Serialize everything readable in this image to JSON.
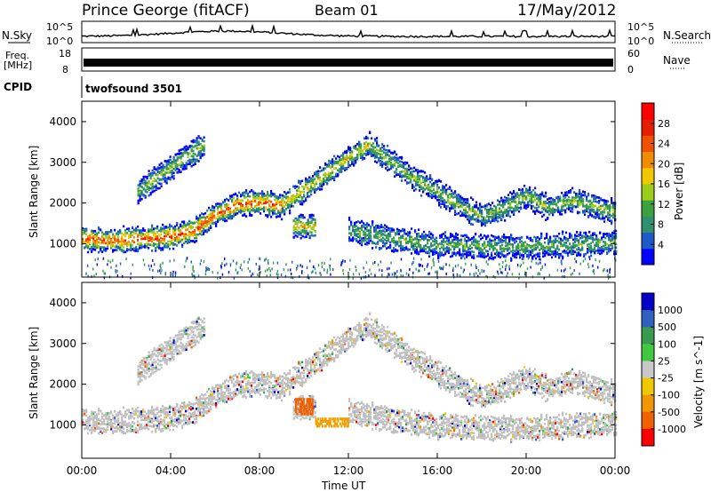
{
  "header": {
    "station": "Prince George (fitACF)",
    "beam": "Beam 01",
    "date": "17/May/2012"
  },
  "noise_panel": {
    "left_label": "N.Sky",
    "right_label": "N.Search",
    "right_ticks": [
      "10^5",
      "10^0"
    ],
    "left_ticks": [
      "10^5",
      "10^0"
    ]
  },
  "freq_panel": {
    "left_label_1": "Freq.",
    "left_label_2": "[MHz]",
    "left_ticks": [
      "18",
      "8"
    ],
    "right_label": "Nave",
    "right_ticks": [
      "60",
      "0"
    ]
  },
  "cpid": {
    "label": "CPID",
    "value": "twofsound 3501"
  },
  "colors": {
    "power": [
      "#0000ff",
      "#1e5ac8",
      "#2f8f6f",
      "#3aa040",
      "#9ccc1c",
      "#f0c800",
      "#f08c00",
      "#f05000",
      "#e61e00",
      "#ff0000"
    ],
    "velocity": [
      "#0000c8",
      "#3060c0",
      "#3a9a50",
      "#40c840",
      "#c8c8c8",
      "#f0c800",
      "#f09600",
      "#f06000",
      "#ff0000"
    ],
    "ground_scatter": "#c0c0c0"
  },
  "chart_data": [
    {
      "type": "heatmap",
      "name": "power",
      "ylabel": "Slant Range [km]",
      "ylim": [
        180,
        4500
      ],
      "y_ticks": [
        "4000",
        "3000",
        "2000",
        "1000"
      ],
      "colorbar_label": "Power [dB]",
      "colorbar_ticks": [
        "28",
        "24",
        "20",
        "16",
        "12",
        "8",
        "4"
      ],
      "colorbar_range": [
        0,
        32
      ],
      "xlim_hours": [
        0,
        24
      ],
      "echo_bands": [
        {
          "t": [
            0,
            1,
            2,
            3,
            4,
            5,
            6,
            7,
            8,
            9
          ],
          "range": [
            1150,
            1100,
            1120,
            1160,
            1200,
            1350,
            1750,
            2000,
            2050,
            1950
          ],
          "peak_power": 26
        },
        {
          "t": [
            2.5,
            3.5,
            4.5,
            5.5
          ],
          "range": [
            2300,
            2700,
            3100,
            3450
          ],
          "peak_power": 14
        },
        {
          "t": [
            9,
            10,
            11,
            12,
            13
          ],
          "range": [
            2000,
            2350,
            2750,
            3150,
            3500
          ],
          "peak_power": 18
        },
        {
          "t": [
            13,
            14,
            15,
            16,
            17,
            18,
            19,
            20,
            21,
            22,
            23,
            24
          ],
          "range": [
            3400,
            3000,
            2600,
            2300,
            1950,
            1700,
            1900,
            2200,
            1900,
            2100,
            1950,
            1800
          ],
          "peak_power": 14
        },
        {
          "t": [
            9.5,
            10,
            10.5
          ],
          "range": [
            1450,
            1450,
            1450
          ],
          "peak_power": 18
        },
        {
          "t": [
            12,
            14,
            16,
            18,
            20,
            22,
            24
          ],
          "range": [
            1350,
            1150,
            1000,
            950,
            950,
            1000,
            1050
          ],
          "peak_power": 12
        }
      ]
    },
    {
      "type": "heatmap",
      "name": "velocity",
      "ylabel": "Slant Range [km]",
      "ylim": [
        180,
        4500
      ],
      "y_ticks": [
        "4000",
        "3000",
        "2000",
        "1000"
      ],
      "colorbar_label": "Velocity [m s^-1]",
      "colorbar_ticks": [
        "1000",
        "500",
        "100",
        "25",
        "-25",
        "-100",
        "-500",
        "-1000"
      ],
      "xlim_hours": [
        0,
        24
      ],
      "x_ticks": [
        "00:00",
        "04:00",
        "08:00",
        "12:00",
        "16:00",
        "20:00",
        "00:00"
      ],
      "xlabel": "Time UT",
      "features": [
        {
          "kind": "ground_scatter",
          "note": "gray band following main echo"
        },
        {
          "t": [
            9.6,
            10.4
          ],
          "range": [
            1300,
            1700
          ],
          "velocity": -800
        },
        {
          "t": [
            10.5,
            12
          ],
          "range": [
            1000,
            1200
          ],
          "velocity": -200
        }
      ]
    }
  ]
}
